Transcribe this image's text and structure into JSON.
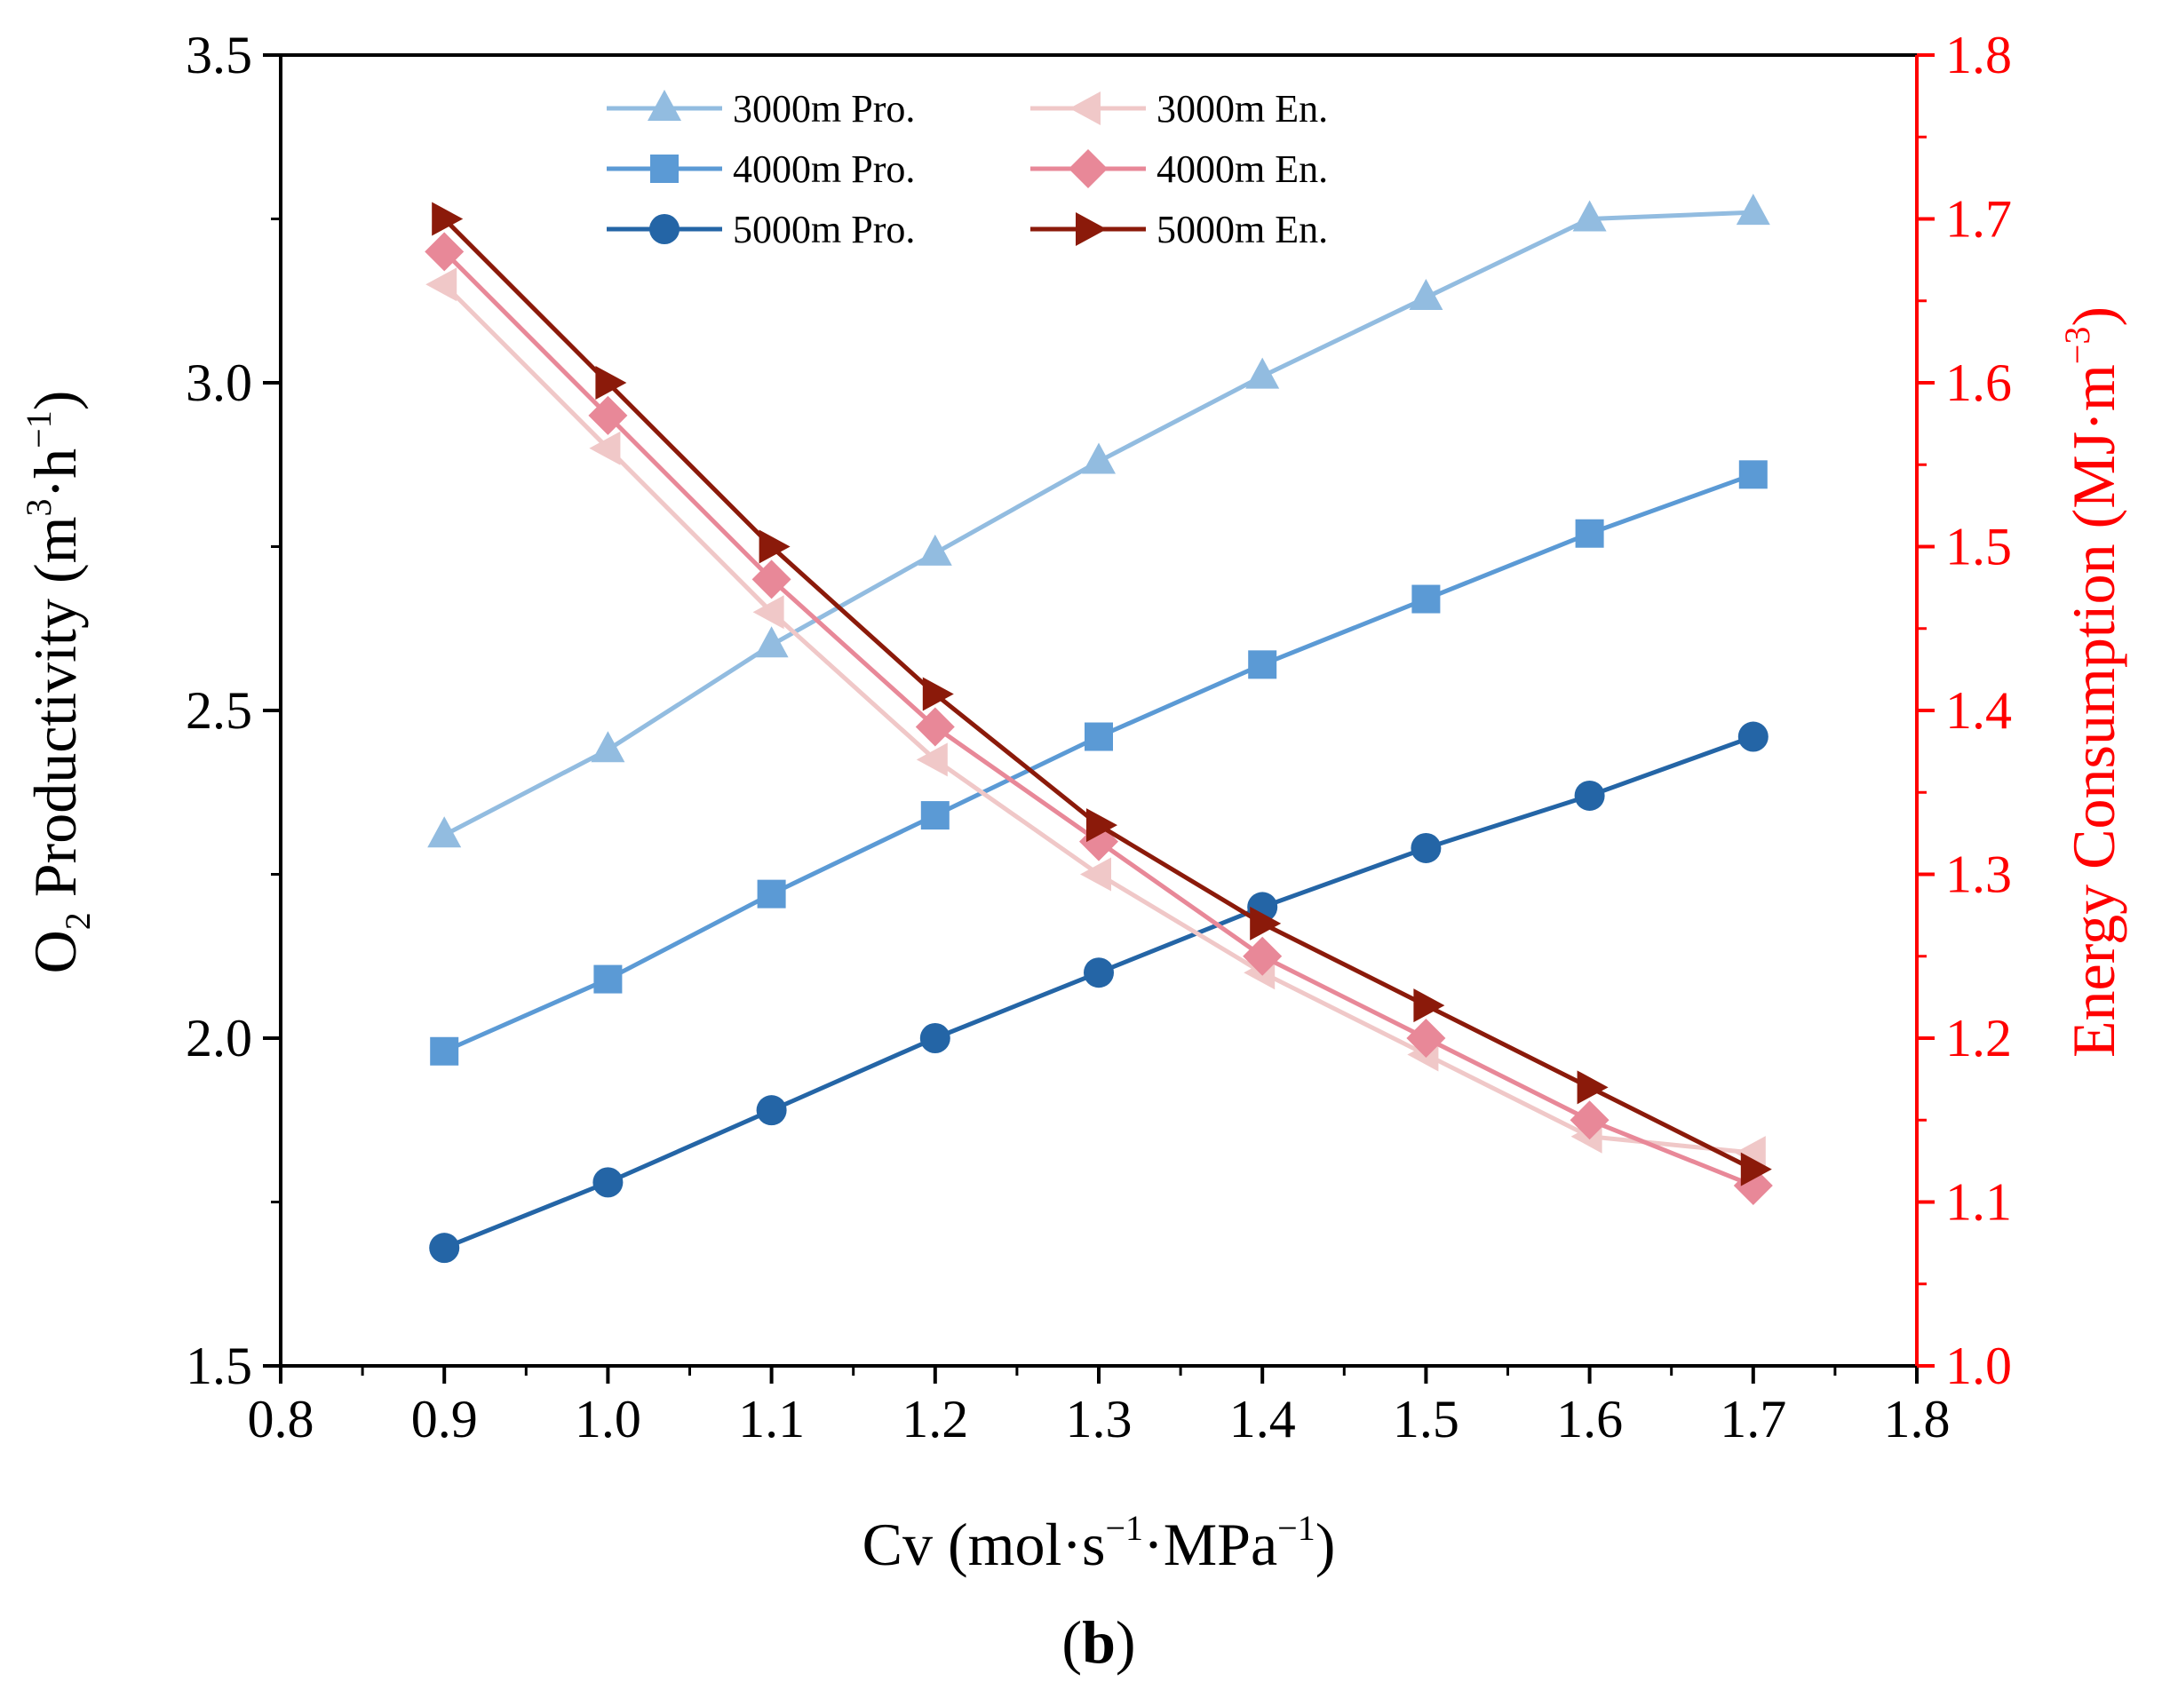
{
  "chart_data": {
    "type": "line",
    "title": "",
    "panel_label": "b",
    "xlabel": {
      "base": "Cv (mol·s",
      "sup1": "−1",
      "mid": "·MPa",
      "sup2": "−1",
      "end": ")"
    },
    "ylabel_left": {
      "base": "O",
      "sub": "2",
      "mid": " Productivity (m",
      "sup1": "3",
      "mid2": "·h",
      "sup2": "−1",
      "end": ")"
    },
    "ylabel_right": {
      "base": "Energy Consumption (MJ·m",
      "sup": "−3",
      "end": ")"
    },
    "xlim": [
      0.8,
      1.8
    ],
    "ylim_left": [
      1.5,
      3.5
    ],
    "ylim_right": [
      1.0,
      1.8
    ],
    "x_ticks": [
      "0.8",
      "0.9",
      "1.0",
      "1.1",
      "1.2",
      "1.3",
      "1.4",
      "1.5",
      "1.6",
      "1.7",
      "1.8"
    ],
    "y_left_ticks": [
      "1.5",
      "2.0",
      "2.5",
      "3.0",
      "3.5"
    ],
    "y_right_ticks": [
      "1.0",
      "1.1",
      "1.2",
      "1.3",
      "1.4",
      "1.5",
      "1.6",
      "1.7",
      "1.8"
    ],
    "x": [
      0.9,
      1.0,
      1.1,
      1.2,
      1.3,
      1.4,
      1.5,
      1.6,
      1.7
    ],
    "series": [
      {
        "name": "3000m Pro.",
        "axis": "left",
        "color": "#92bce0",
        "marker": "triangle-up",
        "values": [
          2.31,
          2.44,
          2.6,
          2.74,
          2.88,
          3.01,
          3.13,
          3.25,
          3.26
        ]
      },
      {
        "name": "4000m Pro.",
        "axis": "left",
        "color": "#5b9ad5",
        "marker": "square",
        "values": [
          1.98,
          2.09,
          2.22,
          2.34,
          2.46,
          2.57,
          2.67,
          2.77,
          2.86
        ]
      },
      {
        "name": "5000m Pro.",
        "axis": "left",
        "color": "#2465a6",
        "marker": "circle",
        "values": [
          1.68,
          1.78,
          1.89,
          2.0,
          2.1,
          2.2,
          2.29,
          2.37,
          2.46
        ]
      },
      {
        "name": "3000m En.",
        "axis": "right",
        "color": "#f0c8c8",
        "marker": "triangle-left",
        "values": [
          1.66,
          1.56,
          1.46,
          1.37,
          1.3,
          1.24,
          1.19,
          1.14,
          1.13
        ]
      },
      {
        "name": "4000m En.",
        "axis": "right",
        "color": "#e88898",
        "marker": "diamond",
        "values": [
          1.68,
          1.58,
          1.48,
          1.39,
          1.32,
          1.25,
          1.2,
          1.15,
          1.11
        ]
      },
      {
        "name": "5000m En.",
        "axis": "right",
        "color": "#8b1a0a",
        "marker": "triangle-right",
        "values": [
          1.7,
          1.6,
          1.5,
          1.41,
          1.33,
          1.27,
          1.22,
          1.17,
          1.12
        ]
      }
    ],
    "legend": "top-center, two columns",
    "grid": false,
    "axis_colors": {
      "left": "#000000",
      "right": "#ff0000"
    }
  }
}
